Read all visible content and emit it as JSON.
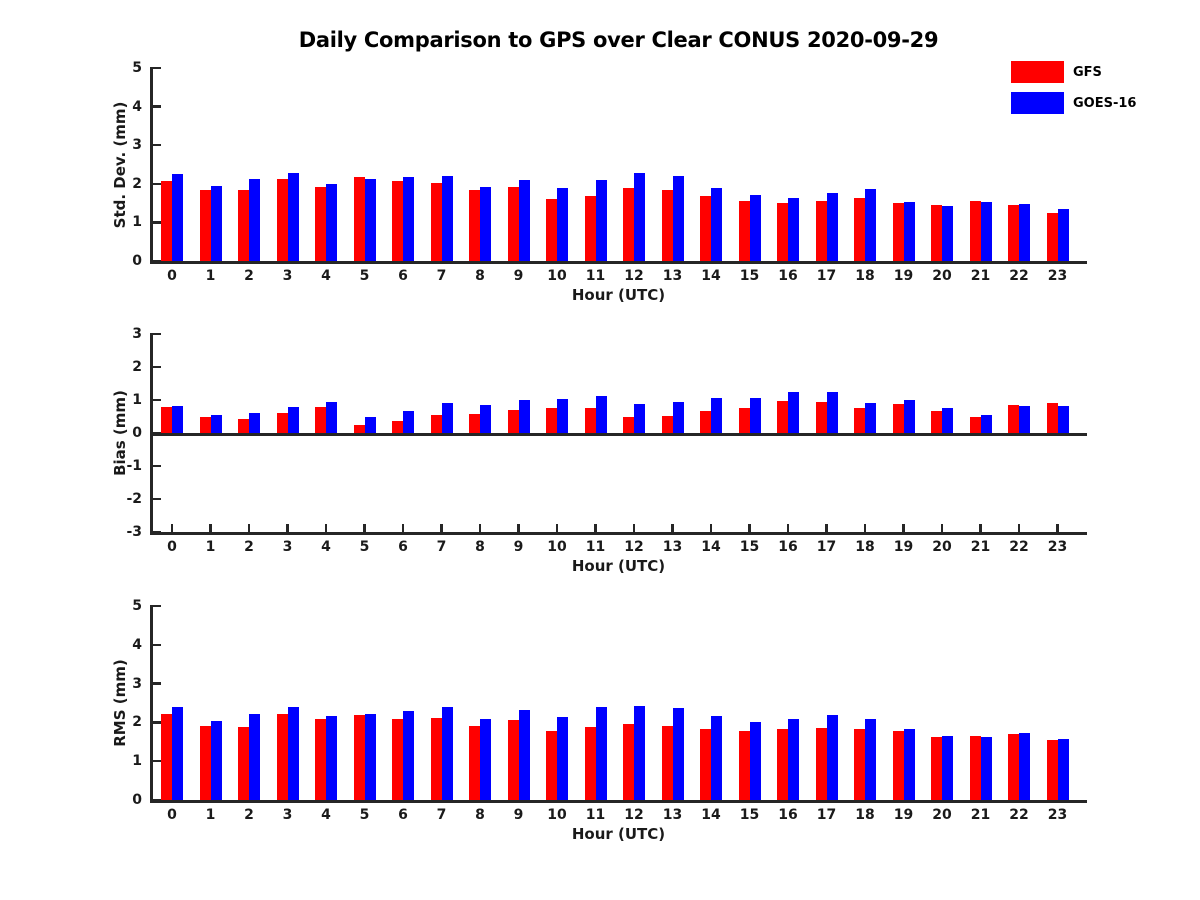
{
  "title": "Daily Comparison to GPS over Clear CONUS 2020-09-29",
  "colors": {
    "gfs": "#ff0000",
    "goes16": "#0000ff",
    "axis": "#262626"
  },
  "legend": {
    "position": "top-right",
    "items": [
      {
        "label": "GFS",
        "color": "gfs"
      },
      {
        "label": "GOES-16",
        "color": "goes16"
      }
    ]
  },
  "chart_data": [
    {
      "type": "bar",
      "title": "",
      "ylabel": "Std. Dev. (mm)",
      "xlabel": "Hour (UTC)",
      "ylim": [
        0,
        5
      ],
      "ytick_step": 1,
      "grid": false,
      "categories": [
        "0",
        "1",
        "2",
        "3",
        "4",
        "5",
        "6",
        "7",
        "8",
        "9",
        "10",
        "11",
        "12",
        "13",
        "14",
        "15",
        "16",
        "17",
        "18",
        "19",
        "20",
        "21",
        "22",
        "23"
      ],
      "series": [
        {
          "name": "GFS",
          "color": "gfs",
          "values": [
            2.07,
            1.85,
            1.83,
            2.13,
            1.93,
            2.17,
            2.06,
            2.02,
            1.83,
            1.93,
            1.6,
            1.69,
            1.9,
            1.84,
            1.69,
            1.56,
            1.5,
            1.56,
            1.63,
            1.5,
            1.46,
            1.55,
            1.45,
            1.24
          ]
        },
        {
          "name": "GOES-16",
          "color": "goes16",
          "values": [
            2.26,
            1.95,
            2.13,
            2.28,
            1.99,
            2.13,
            2.17,
            2.21,
            1.93,
            2.1,
            1.89,
            2.09,
            2.27,
            2.2,
            1.89,
            1.72,
            1.64,
            1.76,
            1.86,
            1.52,
            1.43,
            1.52,
            1.48,
            1.34
          ]
        }
      ]
    },
    {
      "type": "bar",
      "title": "",
      "ylabel": "Bias (mm)",
      "xlabel": "Hour (UTC)",
      "ylim": [
        -3,
        3
      ],
      "ytick_step": 1,
      "grid": false,
      "categories": [
        "0",
        "1",
        "2",
        "3",
        "4",
        "5",
        "6",
        "7",
        "8",
        "9",
        "10",
        "11",
        "12",
        "13",
        "14",
        "15",
        "16",
        "17",
        "18",
        "19",
        "20",
        "21",
        "22",
        "23"
      ],
      "series": [
        {
          "name": "GFS",
          "color": "gfs",
          "values": [
            0.78,
            0.5,
            0.43,
            0.6,
            0.8,
            0.23,
            0.35,
            0.55,
            0.57,
            0.7,
            0.77,
            0.76,
            0.49,
            0.52,
            0.68,
            0.77,
            0.98,
            0.93,
            0.77,
            0.88,
            0.68,
            0.5,
            0.85,
            0.9
          ]
        },
        {
          "name": "GOES-16",
          "color": "goes16",
          "values": [
            0.82,
            0.54,
            0.61,
            0.78,
            0.95,
            0.48,
            0.68,
            0.9,
            0.84,
            0.99,
            1.04,
            1.12,
            0.89,
            0.93,
            1.05,
            1.06,
            1.25,
            1.25,
            0.92,
            0.99,
            0.75,
            0.56,
            0.81,
            0.83
          ]
        }
      ]
    },
    {
      "type": "bar",
      "title": "",
      "ylabel": "RMS (mm)",
      "xlabel": "Hour (UTC)",
      "ylim": [
        0,
        5
      ],
      "ytick_step": 1,
      "grid": false,
      "categories": [
        "0",
        "1",
        "2",
        "3",
        "4",
        "5",
        "6",
        "7",
        "8",
        "9",
        "10",
        "11",
        "12",
        "13",
        "14",
        "15",
        "16",
        "17",
        "18",
        "19",
        "20",
        "21",
        "22",
        "23"
      ],
      "series": [
        {
          "name": "GFS",
          "color": "gfs",
          "values": [
            2.21,
            1.91,
            1.88,
            2.21,
            2.1,
            2.18,
            2.1,
            2.11,
            1.91,
            2.05,
            1.78,
            1.87,
            1.95,
            1.91,
            1.83,
            1.77,
            1.83,
            1.85,
            1.83,
            1.78,
            1.63,
            1.66,
            1.7,
            1.55
          ]
        },
        {
          "name": "GOES-16",
          "color": "goes16",
          "values": [
            2.4,
            2.04,
            2.21,
            2.4,
            2.17,
            2.21,
            2.3,
            2.39,
            2.1,
            2.32,
            2.15,
            2.39,
            2.42,
            2.37,
            2.16,
            2.02,
            2.1,
            2.2,
            2.09,
            1.83,
            1.66,
            1.62,
            1.72,
            1.57
          ]
        }
      ]
    }
  ]
}
